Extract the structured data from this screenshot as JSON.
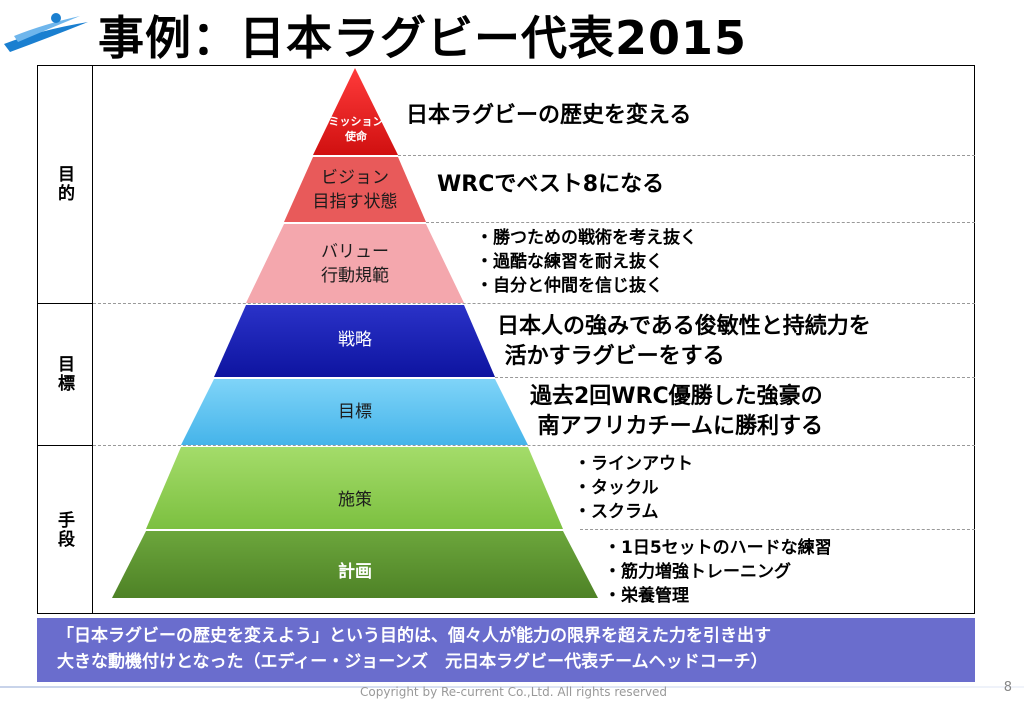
{
  "slide": {
    "title": "事例：日本ラグビー代表2015",
    "page_number": "8",
    "copyright": "Copyright by Re-current Co.,Ltd. All rights reserved",
    "colors": {
      "quote_bg": "#6a6dcd",
      "logo": "#1a7fd0"
    }
  },
  "side_categories": [
    "目的",
    "目標",
    "手段"
  ],
  "pyramid": [
    {
      "label": "ミッション\n使命",
      "color": "#e02020",
      "description": [
        "日本ラグビーの歴史を変える"
      ]
    },
    {
      "label": "ビジョン\n目指す状態",
      "color": "#e85a5a",
      "description": [
        "WRCでベスト8になる"
      ]
    },
    {
      "label": "バリュー\n行動規範",
      "color": "#f4a7ad",
      "description": [
        "・勝つための戦術を考え抜く",
        "・過酷な練習を耐え抜く",
        "・自分と仲間を信じ抜く"
      ]
    },
    {
      "label": "戦略",
      "color": "#1a22b4",
      "description": [
        "日本人の強みである俊敏性と持続力を",
        " 活かすラグビーをする"
      ]
    },
    {
      "label": "目標",
      "color": "#5ac2f2",
      "description": [
        "過去2回WRC優勝した強豪の",
        " 南アフリカチームに勝利する"
      ]
    },
    {
      "label": "施策",
      "color": "#8ed04e",
      "description": [
        "・ラインアウト",
        "・タックル",
        "・スクラム"
      ]
    },
    {
      "label": "計画",
      "color": "#5c9432",
      "description": [
        "・1日5セットのハードな練習",
        "・筋力増強トレーニング",
        "・栄養管理"
      ]
    }
  ],
  "quote": {
    "line1": "「日本ラグビーの歴史を変えよう」という目的は、個々人が能力の限界を超えた力を引き出す",
    "line2": "大きな動機付けとなった（エディー・ジョーンズ　元日本ラグビー代表チームヘッドコーチ）"
  }
}
